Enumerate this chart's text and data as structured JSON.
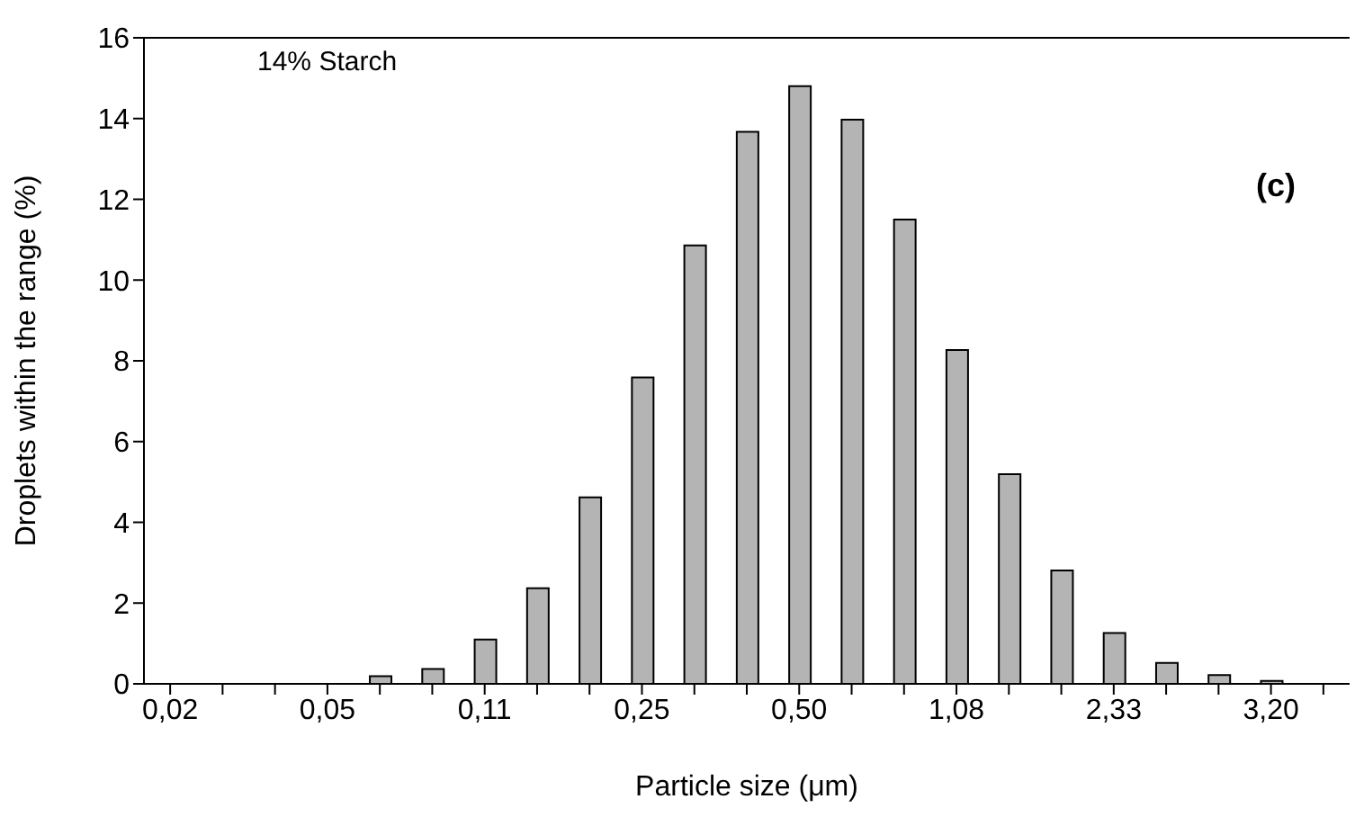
{
  "chart_data": {
    "type": "bar",
    "xlabel": "Particle size (μm)",
    "ylabel": "Droplets within the range (%)",
    "categories": [
      "0,02",
      null,
      null,
      "0,05",
      null,
      null,
      "0,11",
      null,
      null,
      "0,25",
      null,
      null,
      "0,50",
      null,
      null,
      "1,08",
      null,
      null,
      "2,33",
      null,
      null,
      "3,20",
      null
    ],
    "values": [
      0,
      0,
      0,
      0,
      0.19,
      0.37,
      1.1,
      2.37,
      4.62,
      7.59,
      10.86,
      13.67,
      14.8,
      13.97,
      11.5,
      8.27,
      5.19,
      2.81,
      1.26,
      0.52,
      0.22,
      0.07,
      0
    ],
    "color": "#b4b4b4",
    "ylim": [
      0,
      16
    ],
    "yticks": [
      0,
      2,
      4,
      6,
      8,
      10,
      12,
      14,
      16
    ],
    "annotations": [
      "14% Starch",
      "(c)"
    ]
  }
}
